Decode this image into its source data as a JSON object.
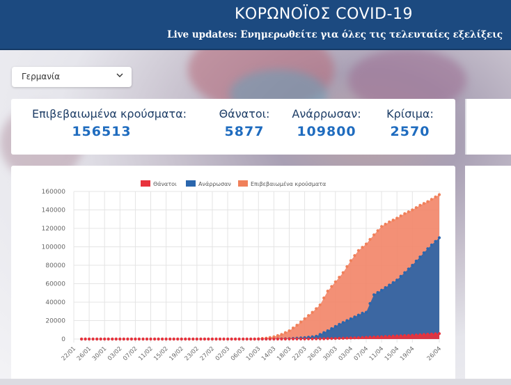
{
  "header": {
    "title": "ΚΟΡΩΝΟΪΟΣ COVID-19",
    "subtitle": "Live updates: Ενημερωθείτε για όλες τις τελευταίες εξελίξεις"
  },
  "country_select": {
    "selected": "Γερμανία",
    "icon": "chevron-down-icon"
  },
  "stats": {
    "confirmed": {
      "label": "Επιβεβαιωμένα κρούσματα:",
      "value": "156513"
    },
    "deaths": {
      "label": "Θάνατοι:",
      "value": "5877"
    },
    "recovered": {
      "label": "Ανάρρωσαν:",
      "value": "109800"
    },
    "critical": {
      "label": "Κρίσιμα:",
      "value": "2570"
    }
  },
  "colors": {
    "header_bg": "#1c4a80",
    "deaths": "#e8323c",
    "recovered": "#2a66ad",
    "confirmed": "#f0805a",
    "confirmed_fill": "#f2876a",
    "recovered_fill": "#2c64a6"
  },
  "chart_data": {
    "type": "area",
    "title": "",
    "xlabel": "",
    "ylabel": "",
    "ylim": [
      0,
      160000
    ],
    "yticks": [
      0,
      20000,
      40000,
      60000,
      80000,
      100000,
      120000,
      140000,
      160000
    ],
    "ytick_labels": [
      "0",
      "20000",
      "40000",
      "60000",
      "80000",
      "100000",
      "120000",
      "140000",
      "160000"
    ],
    "legend_position": "top-center",
    "x_tick_labels": [
      "22/01",
      "26/01",
      "30/01",
      "03/02",
      "07/02",
      "11/02",
      "15/02",
      "19/02",
      "23/02",
      "27/02",
      "02/03",
      "06/03",
      "10/03",
      "14/03",
      "18/03",
      "22/03",
      "26/03",
      "30/03",
      "03/04",
      "07/04",
      "11/04",
      "15/04",
      "19/04",
      "26/04"
    ],
    "tick_days": [
      0,
      4,
      8,
      12,
      16,
      20,
      24,
      28,
      32,
      36,
      40,
      44,
      48,
      52,
      56,
      60,
      64,
      68,
      72,
      76,
      80,
      84,
      88,
      95
    ],
    "start_date": "22/01",
    "num_days": 96,
    "series": [
      {
        "name": "Θάνατοι",
        "color": "#e8323c",
        "start_day": 2,
        "keyframes": [
          [
            2,
            0
          ],
          [
            45,
            0
          ],
          [
            48,
            2
          ],
          [
            52,
            8
          ],
          [
            56,
            40
          ],
          [
            60,
            100
          ],
          [
            64,
            250
          ],
          [
            68,
            600
          ],
          [
            72,
            1100
          ],
          [
            76,
            1800
          ],
          [
            80,
            2500
          ],
          [
            84,
            3300
          ],
          [
            88,
            4100
          ],
          [
            92,
            5200
          ],
          [
            95,
            5877
          ]
        ]
      },
      {
        "name": "Ανάρρωσαν",
        "color": "#2a66ad",
        "start_day": 2,
        "keyframes": [
          [
            2,
            0
          ],
          [
            48,
            0
          ],
          [
            52,
            50
          ],
          [
            56,
            400
          ],
          [
            60,
            1500
          ],
          [
            63,
            3000
          ],
          [
            66,
            9000
          ],
          [
            69,
            16000
          ],
          [
            72,
            22000
          ],
          [
            75,
            28000
          ],
          [
            76,
            29000
          ],
          [
            78,
            48000
          ],
          [
            80,
            53000
          ],
          [
            84,
            64000
          ],
          [
            88,
            80000
          ],
          [
            92,
            98000
          ],
          [
            95,
            109800
          ]
        ]
      },
      {
        "name": "Επιβεβαιωμένα κρούσματα",
        "color": "#f0805a",
        "start_day": 2,
        "keyframes": [
          [
            2,
            0
          ],
          [
            47,
            0
          ],
          [
            50,
            1000
          ],
          [
            52,
            2500
          ],
          [
            54,
            5000
          ],
          [
            56,
            9000
          ],
          [
            58,
            15000
          ],
          [
            60,
            22000
          ],
          [
            62,
            29000
          ],
          [
            64,
            37000
          ],
          [
            66,
            52000
          ],
          [
            68,
            62000
          ],
          [
            70,
            72000
          ],
          [
            72,
            85000
          ],
          [
            74,
            96000
          ],
          [
            76,
            103000
          ],
          [
            78,
            113000
          ],
          [
            80,
            122000
          ],
          [
            82,
            127000
          ],
          [
            84,
            131000
          ],
          [
            86,
            136000
          ],
          [
            88,
            140000
          ],
          [
            90,
            145000
          ],
          [
            92,
            149000
          ],
          [
            94,
            154000
          ],
          [
            95,
            156513
          ]
        ]
      }
    ]
  }
}
